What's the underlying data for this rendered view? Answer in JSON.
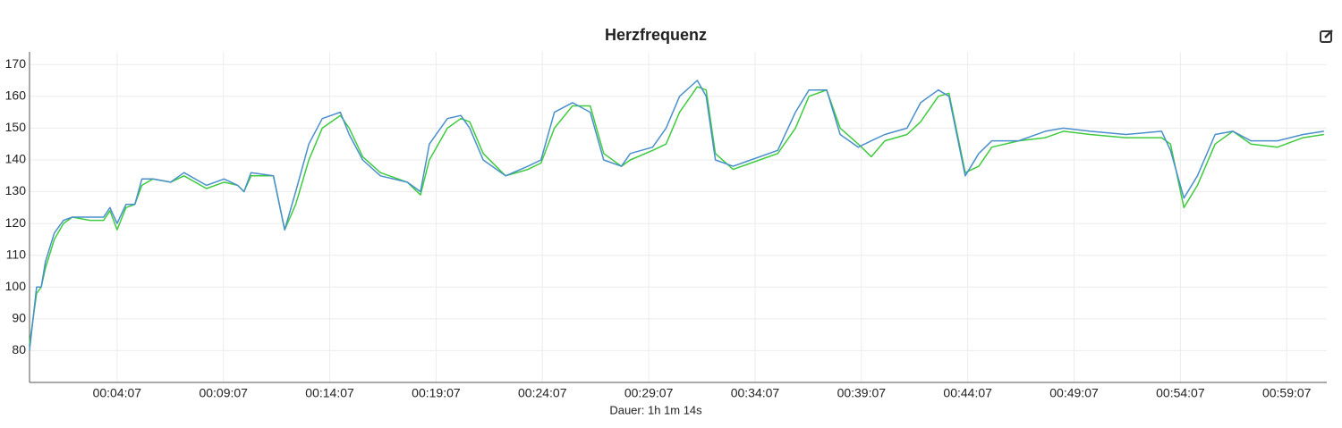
{
  "chart_data": {
    "type": "line",
    "title": "Herzfrequenz",
    "x_label": "Dauer: 1h 1m 14s",
    "x": [
      0,
      20,
      33,
      45,
      70,
      96,
      121,
      171,
      209,
      227,
      247,
      272,
      297,
      317,
      348,
      398,
      436,
      499,
      549,
      587,
      605,
      625,
      688,
      720,
      751,
      788,
      826,
      877,
      902,
      940,
      990,
      1066,
      1103,
      1128,
      1179,
      1217,
      1242,
      1280,
      1343,
      1406,
      1443,
      1481,
      1532,
      1582,
      1620,
      1670,
      1695,
      1758,
      1796,
      1834,
      1884,
      1909,
      1935,
      1985,
      2035,
      2111,
      2161,
      2199,
      2249,
      2287,
      2338,
      2375,
      2413,
      2476,
      2514,
      2564,
      2594,
      2640,
      2678,
      2715,
      2791,
      2866,
      2917,
      2992,
      3093,
      3194,
      3219,
      3257,
      3295,
      3345,
      3395,
      3446,
      3521,
      3593,
      3652
    ],
    "series": [
      {
        "color": "#4a8fcc",
        "values": [
          80,
          100,
          100,
          108,
          117,
          121,
          122,
          122,
          122,
          125,
          120,
          126,
          126,
          134,
          134,
          133,
          136,
          132,
          134,
          132,
          130,
          136,
          135,
          118,
          130,
          145,
          153,
          155,
          148,
          140,
          135,
          133,
          130,
          145,
          153,
          154,
          150,
          140,
          135,
          138,
          140,
          155,
          158,
          155,
          140,
          138,
          142,
          144,
          150,
          160,
          165,
          160,
          140,
          138,
          140,
          143,
          155,
          162,
          162,
          148,
          144,
          146,
          148,
          150,
          158,
          162,
          160,
          135,
          142,
          146,
          146,
          149,
          150,
          149,
          148,
          149,
          143,
          128,
          135,
          148,
          149,
          146,
          146,
          148,
          149
        ]
      },
      {
        "color": "#3ecb3e",
        "values": [
          82,
          98,
          100,
          106,
          115,
          120,
          122,
          121,
          121,
          124,
          118,
          125,
          126,
          132,
          134,
          133,
          135,
          131,
          133,
          132,
          130,
          135,
          135,
          118,
          126,
          140,
          150,
          154,
          150,
          141,
          136,
          133,
          129,
          140,
          150,
          153,
          152,
          142,
          135,
          137,
          139,
          150,
          157,
          157,
          142,
          138,
          140,
          143,
          145,
          155,
          163,
          162,
          142,
          137,
          139,
          142,
          150,
          160,
          162,
          150,
          145,
          141,
          146,
          148,
          152,
          160,
          161,
          136,
          138,
          144,
          146,
          147,
          149,
          148,
          147,
          147,
          145,
          125,
          132,
          145,
          149,
          145,
          144,
          147,
          148
        ]
      }
    ],
    "xlim": [
      0,
      3660
    ],
    "xticks": [
      {
        "value": 247,
        "label": "00:04:07"
      },
      {
        "value": 547,
        "label": "00:09:07"
      },
      {
        "value": 847,
        "label": "00:14:07"
      },
      {
        "value": 1147,
        "label": "00:19:07"
      },
      {
        "value": 1447,
        "label": "00:24:07"
      },
      {
        "value": 1747,
        "label": "00:29:07"
      },
      {
        "value": 2047,
        "label": "00:34:07"
      },
      {
        "value": 2347,
        "label": "00:39:07"
      },
      {
        "value": 2647,
        "label": "00:44:07"
      },
      {
        "value": 2947,
        "label": "00:49:07"
      },
      {
        "value": 3247,
        "label": "00:54:07"
      },
      {
        "value": 3547,
        "label": "00:59:07"
      }
    ],
    "ylim": [
      70,
      174
    ],
    "yticks": [
      80,
      90,
      100,
      110,
      120,
      130,
      140,
      150,
      160,
      170
    ],
    "grid": true
  }
}
